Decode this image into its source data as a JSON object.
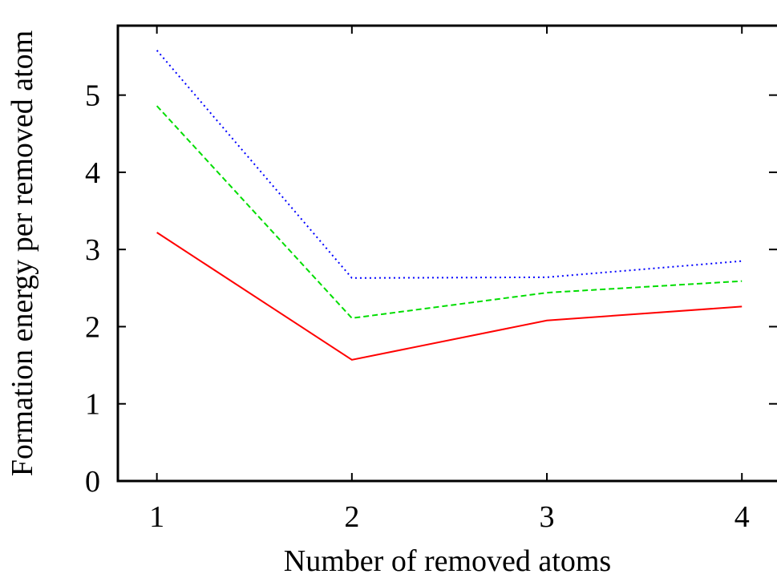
{
  "chart_data": {
    "type": "line",
    "title": "",
    "xlabel": "Number of removed atoms",
    "ylabel": "Formation energy per removed atom",
    "x": [
      1,
      2,
      3,
      4
    ],
    "xlim": [
      0.8,
      4.18
    ],
    "ylim": [
      0,
      5.9
    ],
    "xticks": [
      "1",
      "2",
      "3",
      "4"
    ],
    "yticks": [
      "0",
      "1",
      "2",
      "3",
      "4",
      "5"
    ],
    "grid": false,
    "legend": "none",
    "series": [
      {
        "values": [
          3.22,
          1.57,
          2.08,
          2.26
        ],
        "color": "#ff0000",
        "dash": "solid"
      },
      {
        "values": [
          4.86,
          2.11,
          2.44,
          2.59
        ],
        "color": "#00dd00",
        "dash": "dashed"
      },
      {
        "values": [
          5.58,
          2.63,
          2.64,
          2.85
        ],
        "color": "#0000ff",
        "dash": "dotted"
      }
    ]
  }
}
